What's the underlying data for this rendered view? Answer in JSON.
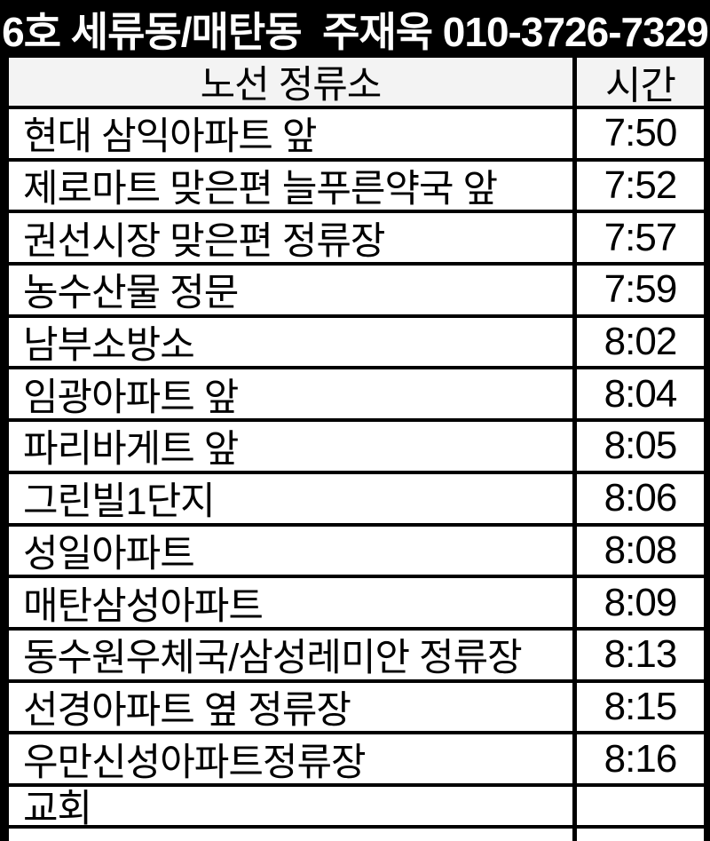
{
  "title": "6호 세류동/매탄동  주재욱 010-3726-7329",
  "colors": {
    "titlebar_bg": "#000000",
    "titlebar_text": "#ffffff",
    "header_row_bg": "#f3f3f3",
    "row_bg": "#ffffff",
    "border": "#000000",
    "cell_text": "#000000"
  },
  "table": {
    "header": {
      "stop": "노선 정류소",
      "time": "시간"
    },
    "rows": [
      {
        "stop": "현대 삼익아파트 앞",
        "time": "7:50"
      },
      {
        "stop": "제로마트 맞은편 늘푸른약국 앞",
        "time": "7:52"
      },
      {
        "stop": "권선시장 맞은편 정류장",
        "time": "7:57"
      },
      {
        "stop": "농수산물 정문",
        "time": "7:59"
      },
      {
        "stop": "남부소방소",
        "time": "8:02"
      },
      {
        "stop": "임광아파트 앞",
        "time": "8:04"
      },
      {
        "stop": "파리바게트 앞",
        "time": "8:05"
      },
      {
        "stop": "그린빌1단지",
        "time": "8:06"
      },
      {
        "stop": "성일아파트",
        "time": "8:08"
      },
      {
        "stop": "매탄삼성아파트",
        "time": "8:09"
      },
      {
        "stop": "동수원우체국/삼성레미안 정류장",
        "time": "8:13"
      },
      {
        "stop": "선경아파트 옆 정류장",
        "time": "8:15"
      },
      {
        "stop": "우만신성아파트정류장",
        "time": "8:16"
      },
      {
        "stop": "교회",
        "time": ""
      }
    ]
  }
}
